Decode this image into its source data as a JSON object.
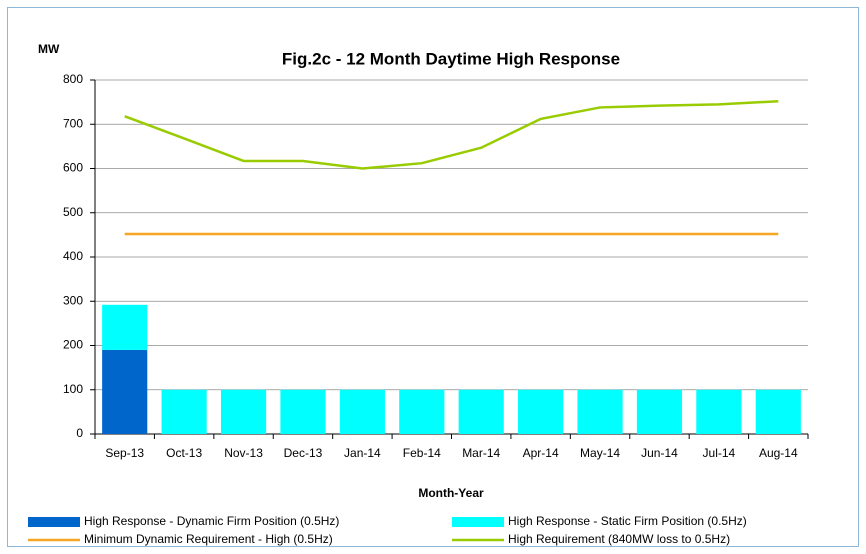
{
  "chart_data": {
    "type": "bar",
    "title": "Fig.2c - 12 Month Daytime High Response",
    "y_label": "MW",
    "x_label": "Month-Year",
    "categories": [
      "Sep-13",
      "Oct-13",
      "Nov-13",
      "Dec-13",
      "Jan-14",
      "Feb-14",
      "Mar-14",
      "Apr-14",
      "May-14",
      "Jun-14",
      "Jul-14",
      "Aug-14"
    ],
    "series": [
      {
        "name": "High Response - Dynamic Firm Position (0.5Hz)",
        "color": "#0066cc",
        "type": "bar",
        "values": [
          190,
          0,
          0,
          0,
          0,
          0,
          0,
          0,
          0,
          0,
          0,
          0
        ]
      },
      {
        "name": "High Response - Static Firm Position (0.5Hz)",
        "color": "#00ffff",
        "type": "bar",
        "values": [
          102,
          100,
          100,
          100,
          100,
          100,
          100,
          100,
          100,
          100,
          100,
          100
        ]
      },
      {
        "name": "Minimum Dynamic Requirement - High (0.5Hz)",
        "color": "#f5a623",
        "type": "line",
        "values": [
          452,
          452,
          452,
          452,
          452,
          452,
          452,
          452,
          452,
          452,
          452,
          452
        ]
      },
      {
        "name": "High Requirement (840MW loss to 0.5Hz)",
        "color": "#99cc00",
        "type": "line",
        "values": [
          718,
          668,
          617,
          617,
          600,
          612,
          647,
          712,
          738,
          742,
          745,
          752
        ]
      }
    ],
    "ylim": [
      0,
      800
    ],
    "yticks": [
      0,
      100,
      200,
      300,
      400,
      500,
      600,
      700,
      800
    ],
    "grid": true
  }
}
